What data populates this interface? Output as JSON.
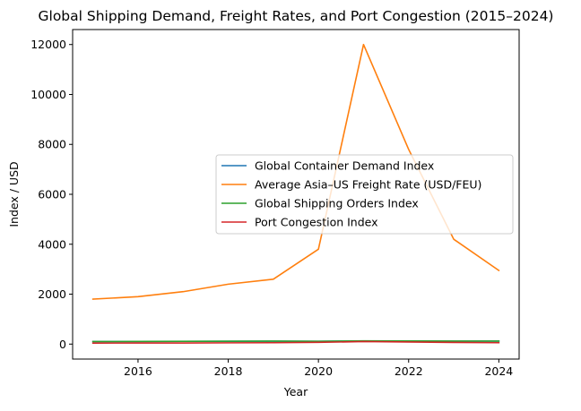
{
  "chart_data": {
    "type": "line",
    "title": "Global Shipping Demand, Freight Rates, and Port Congestion (2015–2024)",
    "xlabel": "Year",
    "ylabel": "Index / USD",
    "x": [
      2015,
      2016,
      2017,
      2018,
      2019,
      2020,
      2021,
      2022,
      2023,
      2024
    ],
    "xlim": [
      2014.55,
      2024.45
    ],
    "ylim": [
      -600,
      12600
    ],
    "xticks": [
      2016,
      2018,
      2020,
      2022,
      2024
    ],
    "xtick_labels": [
      "2016",
      "2018",
      "2020",
      "2022",
      "2024"
    ],
    "yticks": [
      0,
      2000,
      4000,
      6000,
      8000,
      10000,
      12000
    ],
    "ytick_labels": [
      "0",
      "2000",
      "4000",
      "6000",
      "8000",
      "10000",
      "12000"
    ],
    "grid": false,
    "legend_position": "center-right",
    "series": [
      {
        "name": "Global Container Demand Index",
        "color": "#1f77b4",
        "values": [
          100,
          103,
          108,
          112,
          115,
          110,
          125,
          120,
          115,
          118
        ]
      },
      {
        "name": "Average Asia–US Freight Rate (USD/FEU)",
        "color": "#ff7f0e",
        "values": [
          1800,
          1900,
          2100,
          2400,
          2600,
          3800,
          12000,
          7800,
          4200,
          2950
        ]
      },
      {
        "name": "Global Shipping Orders Index",
        "color": "#2ca02c",
        "values": [
          100,
          105,
          110,
          115,
          118,
          112,
          130,
          125,
          118,
          120
        ]
      },
      {
        "name": "Port Congestion Index",
        "color": "#d62728",
        "values": [
          40,
          42,
          45,
          50,
          55,
          70,
          100,
          85,
          65,
          55
        ]
      }
    ]
  }
}
